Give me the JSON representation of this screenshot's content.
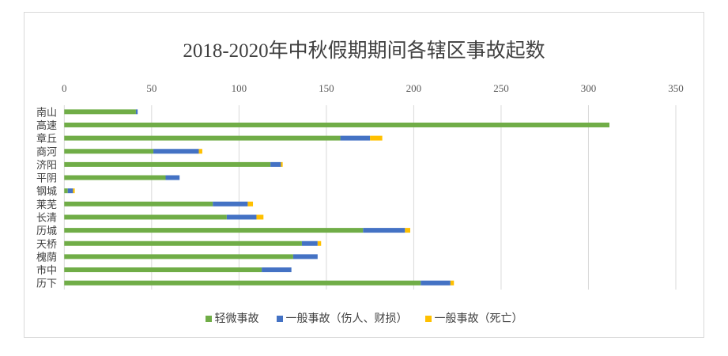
{
  "chart_data": {
    "type": "bar",
    "orientation": "horizontal-stacked",
    "title": "2018-2020年中秋假期期间各辖区事故起数",
    "categories": [
      "南山",
      "高速",
      "章丘",
      "商河",
      "济阳",
      "平阴",
      "钢城",
      "莱芜",
      "长清",
      "历城",
      "天桥",
      "槐荫",
      "市中",
      "历下"
    ],
    "series": [
      {
        "name": "轻微事故",
        "color": "#70ad47",
        "values": [
          41,
          312,
          158,
          51,
          118,
          58,
          2,
          85,
          93,
          171,
          136,
          131,
          113,
          204
        ]
      },
      {
        "name": "一般事故（伤人、财损）",
        "color": "#4472c4",
        "values": [
          1,
          0,
          17,
          26,
          6,
          8,
          3,
          20,
          17,
          24,
          9,
          14,
          17,
          17
        ]
      },
      {
        "name": "一般事故（死亡）",
        "color": "#ffc000",
        "values": [
          0,
          0,
          7,
          2,
          1,
          0,
          1,
          3,
          4,
          3,
          2,
          0,
          0,
          2
        ]
      }
    ],
    "xlim": [
      0,
      350
    ],
    "xticks": [
      0,
      50,
      100,
      150,
      200,
      250,
      300,
      350
    ],
    "grid": true,
    "legend": "bottom",
    "xlabel": "",
    "ylabel": ""
  }
}
